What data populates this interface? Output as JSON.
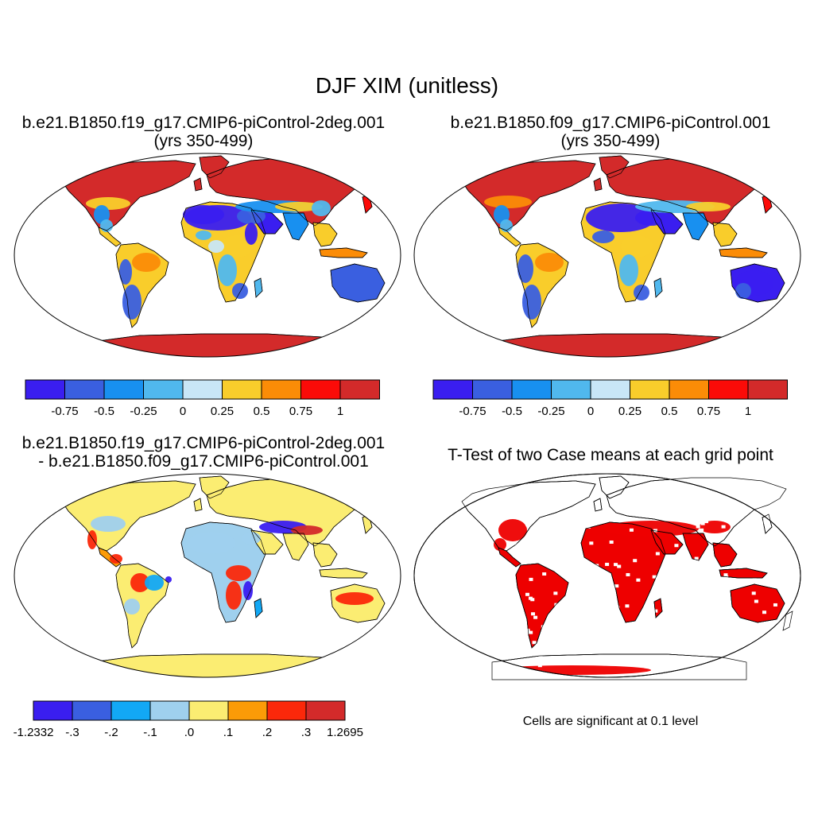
{
  "title": "DJF XIM (unitless)",
  "panels": [
    {
      "id": "case1",
      "title_line1": "b.e21.B1850.f19_g17.CMIP6-piControl-2deg.001",
      "title_line2": "(yrs 350-499)"
    },
    {
      "id": "case2",
      "title_line1": "b.e21.B1850.f09_g17.CMIP6-piControl.001",
      "title_line2": "(yrs 350-499)"
    },
    {
      "id": "diff",
      "title_line1": "b.e21.B1850.f19_g17.CMIP6-piControl-2deg.001",
      "title_line2": "- b.e21.B1850.f09_g17.CMIP6-piControl.001"
    },
    {
      "id": "ttest",
      "title_line1": "T-Test of two Case means at each grid point"
    }
  ],
  "colorbars": {
    "cases": {
      "colors": [
        "#3a1ef0",
        "#3a5fe0",
        "#1890f0",
        "#50b8ee",
        "#c8e6f7",
        "#f9cd2b",
        "#fb8c07",
        "#fb0b08",
        "#d32a2a"
      ],
      "labels": [
        "-0.75",
        "-0.5",
        "-0.25",
        "0",
        "0.25",
        "0.5",
        "0.75",
        "1"
      ]
    },
    "diff": {
      "colors": [
        "#3a1ef0",
        "#3a5fe0",
        "#12a8f5",
        "#9fd0ee",
        "#fbed72",
        "#fb9b07",
        "#fb280a",
        "#d32a2a"
      ],
      "labels": [
        "-1.2332",
        "-.3",
        "-.2",
        "-.1",
        ".0",
        ".1",
        ".2",
        ".3",
        "1.2695"
      ]
    }
  },
  "significance_color": "#ee0000",
  "significance_note": "Cells are significant at 0.1 level"
}
